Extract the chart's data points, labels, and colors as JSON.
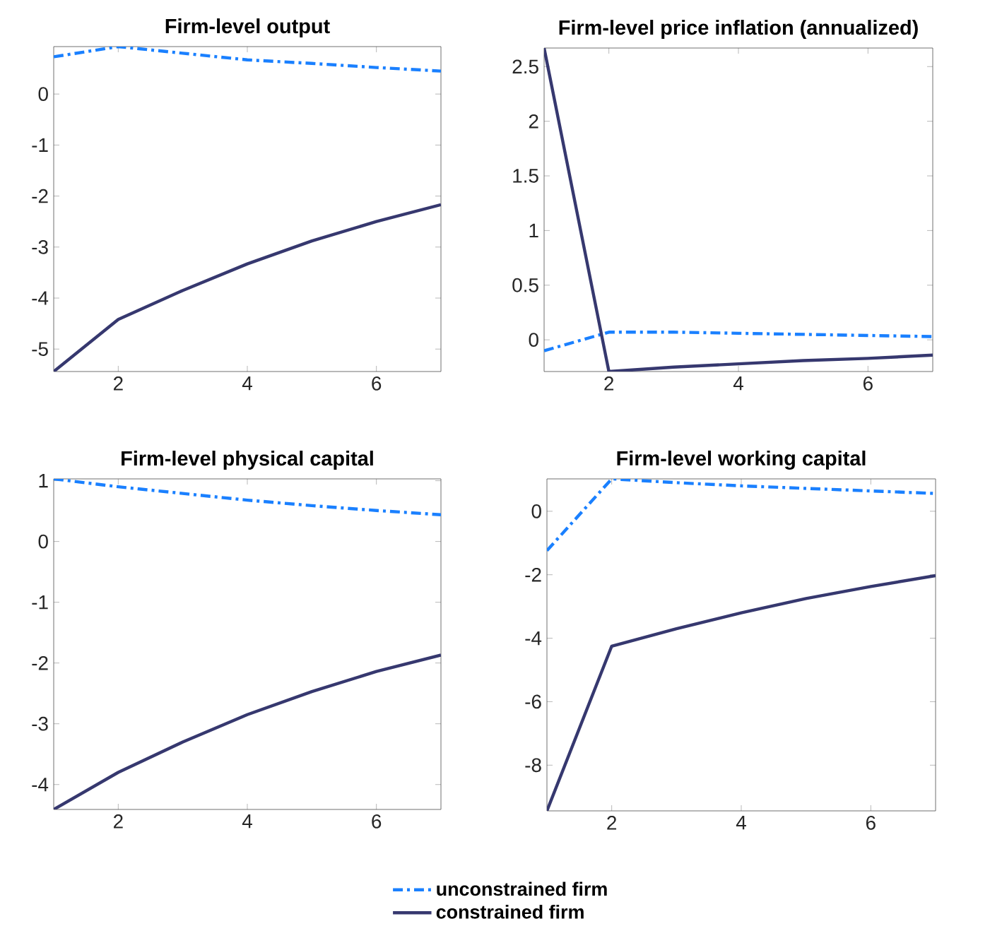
{
  "chart_data": [
    {
      "type": "line",
      "title": "Firm-level output",
      "x": [
        1,
        2,
        3,
        4,
        5,
        6,
        7
      ],
      "xlim": [
        1,
        7
      ],
      "xticks": [
        2,
        4,
        6
      ],
      "ylim": [
        -5.44,
        0.93
      ],
      "yticks": [
        -5,
        -4,
        -3,
        -2,
        -1,
        0
      ],
      "series": [
        {
          "color": "#1a80ff",
          "line_style": "dashdot",
          "values": [
            0.73,
            0.93,
            0.8,
            0.67,
            0.6,
            0.52,
            0.45
          ]
        },
        {
          "color": "#36386f",
          "line_style": "solid",
          "values": [
            -5.44,
            -4.42,
            -3.85,
            -3.33,
            -2.88,
            -2.5,
            -2.17
          ]
        }
      ]
    },
    {
      "type": "line",
      "title": "Firm-level price inflation (annualized)",
      "x": [
        1,
        2,
        3,
        4,
        5,
        6,
        7
      ],
      "xlim": [
        1,
        7
      ],
      "xticks": [
        2,
        4,
        6
      ],
      "ylim": [
        -0.29,
        2.67
      ],
      "yticks": [
        0,
        0.5,
        1,
        1.5,
        2,
        2.5
      ],
      "series": [
        {
          "color": "#1a80ff",
          "line_style": "dashdot",
          "values": [
            -0.1,
            0.07,
            0.07,
            0.06,
            0.05,
            0.04,
            0.03
          ]
        },
        {
          "color": "#36386f",
          "line_style": "solid",
          "values": [
            2.67,
            -0.29,
            -0.25,
            -0.22,
            -0.19,
            -0.17,
            -0.14
          ]
        }
      ]
    },
    {
      "type": "line",
      "title": "Firm-level physical capital",
      "x": [
        1,
        2,
        3,
        4,
        5,
        6,
        7
      ],
      "xlim": [
        1,
        7
      ],
      "xticks": [
        2,
        4,
        6
      ],
      "ylim": [
        -4.41,
        1.03
      ],
      "yticks": [
        -4,
        -3,
        -2,
        -1,
        0,
        1
      ],
      "series": [
        {
          "color": "#1a80ff",
          "line_style": "dashdot",
          "values": [
            1.03,
            0.9,
            0.79,
            0.68,
            0.59,
            0.51,
            0.44
          ]
        },
        {
          "color": "#36386f",
          "line_style": "solid",
          "values": [
            -4.41,
            -3.8,
            -3.3,
            -2.85,
            -2.47,
            -2.14,
            -1.87
          ]
        }
      ]
    },
    {
      "type": "line",
      "title": "Firm-level working capital",
      "x": [
        1,
        2,
        3,
        4,
        5,
        6,
        7
      ],
      "xlim": [
        1,
        7
      ],
      "xticks": [
        2,
        4,
        6
      ],
      "ylim": [
        -9.44,
        1.02
      ],
      "yticks": [
        -8,
        -6,
        -4,
        -2,
        0
      ],
      "legend": "bottom",
      "series": [
        {
          "name": "unconstrained firm",
          "color": "#1a80ff",
          "line_style": "dashdot",
          "values": [
            -1.24,
            1.02,
            0.9,
            0.8,
            0.72,
            0.64,
            0.56
          ]
        },
        {
          "name": "constrained firm",
          "color": "#36386f",
          "line_style": "solid",
          "values": [
            -9.44,
            -4.25,
            -3.7,
            -3.2,
            -2.75,
            -2.37,
            -2.03
          ]
        }
      ]
    }
  ]
}
